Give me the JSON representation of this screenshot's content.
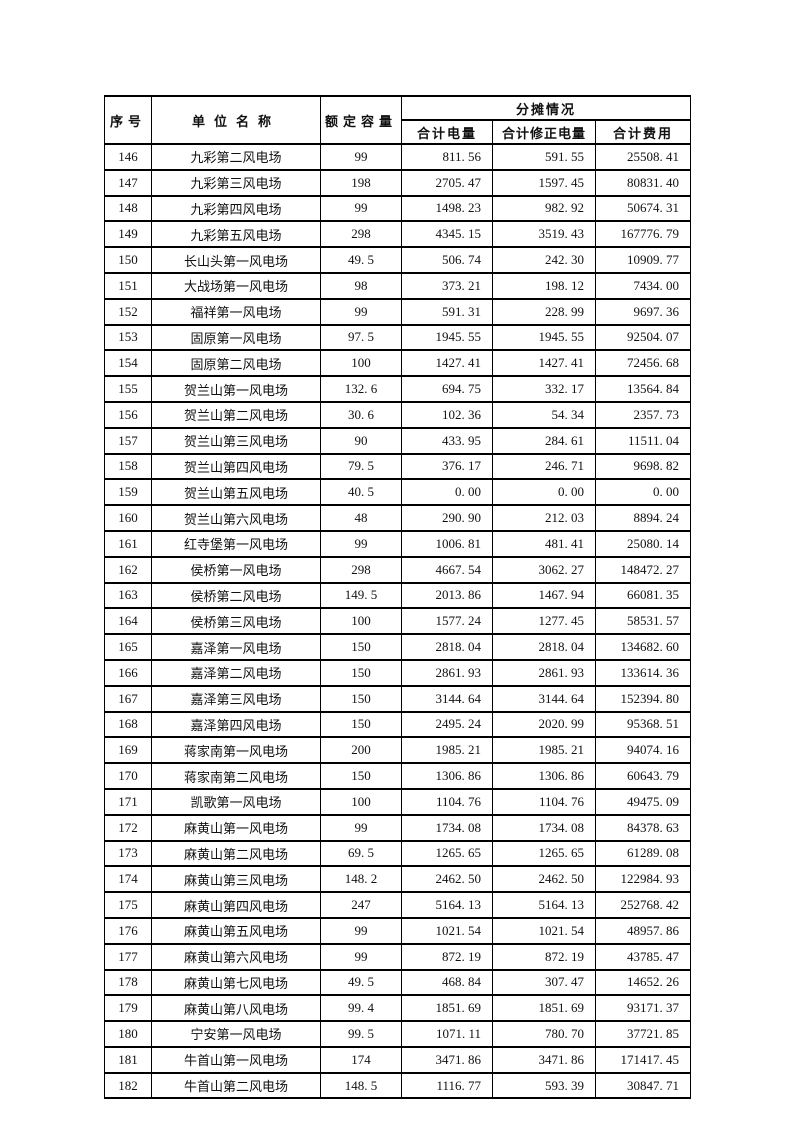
{
  "document": {
    "background_color": "#ffffff",
    "text_color": "#111111",
    "border_color": "#000000"
  },
  "table": {
    "columns": {
      "serial": "序号",
      "unit_name": "单位名称",
      "rated_capacity": "额定容量",
      "allocation_group": "分摊情况",
      "total_power": "合计电量",
      "total_corrected_power": "合计修正电量",
      "total_cost": "合计费用"
    },
    "row_fields": [
      "serial",
      "unit_name",
      "rated_capacity",
      "total_power",
      "total_corrected_power",
      "total_cost"
    ],
    "rows": [
      [
        "146",
        "九彩第二风电场",
        "99",
        "811.56",
        "591.55",
        "25508.41"
      ],
      [
        "147",
        "九彩第三风电场",
        "198",
        "2705.47",
        "1597.45",
        "80831.40"
      ],
      [
        "148",
        "九彩第四风电场",
        "99",
        "1498.23",
        "982.92",
        "50674.31"
      ],
      [
        "149",
        "九彩第五风电场",
        "298",
        "4345.15",
        "3519.43",
        "167776.79"
      ],
      [
        "150",
        "长山头第一风电场",
        "49.5",
        "506.74",
        "242.30",
        "10909.77"
      ],
      [
        "151",
        "大战场第一风电场",
        "98",
        "373.21",
        "198.12",
        "7434.00"
      ],
      [
        "152",
        "福祥第一风电场",
        "99",
        "591.31",
        "228.99",
        "9697.36"
      ],
      [
        "153",
        "固原第一风电场",
        "97.5",
        "1945.55",
        "1945.55",
        "92504.07"
      ],
      [
        "154",
        "固原第二风电场",
        "100",
        "1427.41",
        "1427.41",
        "72456.68"
      ],
      [
        "155",
        "贺兰山第一风电场",
        "132.6",
        "694.75",
        "332.17",
        "13564.84"
      ],
      [
        "156",
        "贺兰山第二风电场",
        "30.6",
        "102.36",
        "54.34",
        "2357.73"
      ],
      [
        "157",
        "贺兰山第三风电场",
        "90",
        "433.95",
        "284.61",
        "11511.04"
      ],
      [
        "158",
        "贺兰山第四风电场",
        "79.5",
        "376.17",
        "246.71",
        "9698.82"
      ],
      [
        "159",
        "贺兰山第五风电场",
        "40.5",
        "0.00",
        "0.00",
        "0.00"
      ],
      [
        "160",
        "贺兰山第六风电场",
        "48",
        "290.90",
        "212.03",
        "8894.24"
      ],
      [
        "161",
        "红寺堡第一风电场",
        "99",
        "1006.81",
        "481.41",
        "25080.14"
      ],
      [
        "162",
        "侯桥第一风电场",
        "298",
        "4667.54",
        "3062.27",
        "148472.27"
      ],
      [
        "163",
        "侯桥第二风电场",
        "149.5",
        "2013.86",
        "1467.94",
        "66081.35"
      ],
      [
        "164",
        "侯桥第三风电场",
        "100",
        "1577.24",
        "1277.45",
        "58531.57"
      ],
      [
        "165",
        "嘉泽第一风电场",
        "150",
        "2818.04",
        "2818.04",
        "134682.60"
      ],
      [
        "166",
        "嘉泽第二风电场",
        "150",
        "2861.93",
        "2861.93",
        "133614.36"
      ],
      [
        "167",
        "嘉泽第三风电场",
        "150",
        "3144.64",
        "3144.64",
        "152394.80"
      ],
      [
        "168",
        "嘉泽第四风电场",
        "150",
        "2495.24",
        "2020.99",
        "95368.51"
      ],
      [
        "169",
        "蒋家南第一风电场",
        "200",
        "1985.21",
        "1985.21",
        "94074.16"
      ],
      [
        "170",
        "蒋家南第二风电场",
        "150",
        "1306.86",
        "1306.86",
        "60643.79"
      ],
      [
        "171",
        "凯歌第一风电场",
        "100",
        "1104.76",
        "1104.76",
        "49475.09"
      ],
      [
        "172",
        "麻黄山第一风电场",
        "99",
        "1734.08",
        "1734.08",
        "84378.63"
      ],
      [
        "173",
        "麻黄山第二风电场",
        "69.5",
        "1265.65",
        "1265.65",
        "61289.08"
      ],
      [
        "174",
        "麻黄山第三风电场",
        "148.2",
        "2462.50",
        "2462.50",
        "122984.93"
      ],
      [
        "175",
        "麻黄山第四风电场",
        "247",
        "5164.13",
        "5164.13",
        "252768.42"
      ],
      [
        "176",
        "麻黄山第五风电场",
        "99",
        "1021.54",
        "1021.54",
        "48957.86"
      ],
      [
        "177",
        "麻黄山第六风电场",
        "99",
        "872.19",
        "872.19",
        "43785.47"
      ],
      [
        "178",
        "麻黄山第七风电场",
        "49.5",
        "468.84",
        "307.47",
        "14652.26"
      ],
      [
        "179",
        "麻黄山第八风电场",
        "99.4",
        "1851.69",
        "1851.69",
        "93171.37"
      ],
      [
        "180",
        "宁安第一风电场",
        "99.5",
        "1071.11",
        "780.70",
        "37721.85"
      ],
      [
        "181",
        "牛首山第一风电场",
        "174",
        "3471.86",
        "3471.86",
        "171417.45"
      ],
      [
        "182",
        "牛首山第二风电场",
        "148.5",
        "1116.77",
        "593.39",
        "30847.71"
      ]
    ]
  }
}
